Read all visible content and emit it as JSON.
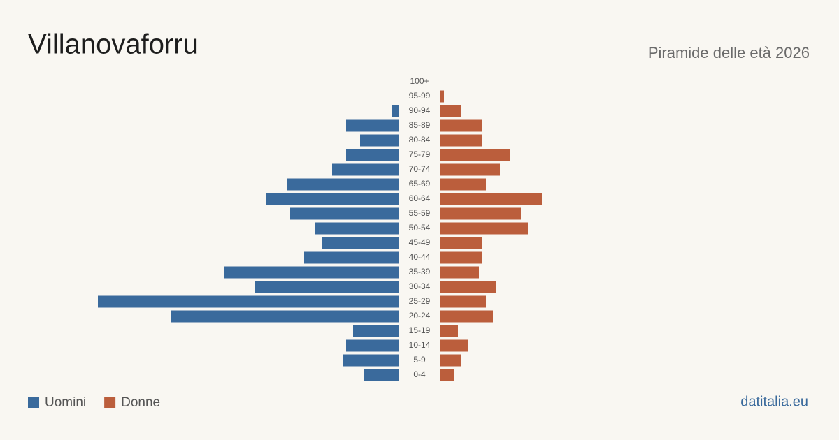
{
  "chart_data": {
    "type": "pyramid",
    "title": "Villanovaforru",
    "subtitle": "Piramide delle età 2026",
    "source": "datitalia.eu",
    "categories": [
      "100+",
      "95-99",
      "90-94",
      "85-89",
      "80-84",
      "75-79",
      "70-74",
      "65-69",
      "60-64",
      "55-59",
      "50-54",
      "45-49",
      "40-44",
      "35-39",
      "30-34",
      "25-29",
      "20-24",
      "15-19",
      "10-14",
      "5-9",
      "0-4"
    ],
    "series": [
      {
        "name": "Uomini",
        "color": "#3a6a9c",
        "side": "left",
        "values": [
          0,
          0,
          2,
          15,
          11,
          15,
          19,
          32,
          38,
          31,
          24,
          22,
          27,
          50,
          41,
          86,
          65,
          13,
          15,
          16,
          10
        ]
      },
      {
        "name": "Donne",
        "color": "#bb5e3c",
        "side": "right",
        "values": [
          0,
          1,
          6,
          12,
          12,
          20,
          17,
          13,
          29,
          23,
          25,
          12,
          12,
          11,
          16,
          13,
          15,
          5,
          8,
          6,
          4
        ]
      }
    ]
  }
}
